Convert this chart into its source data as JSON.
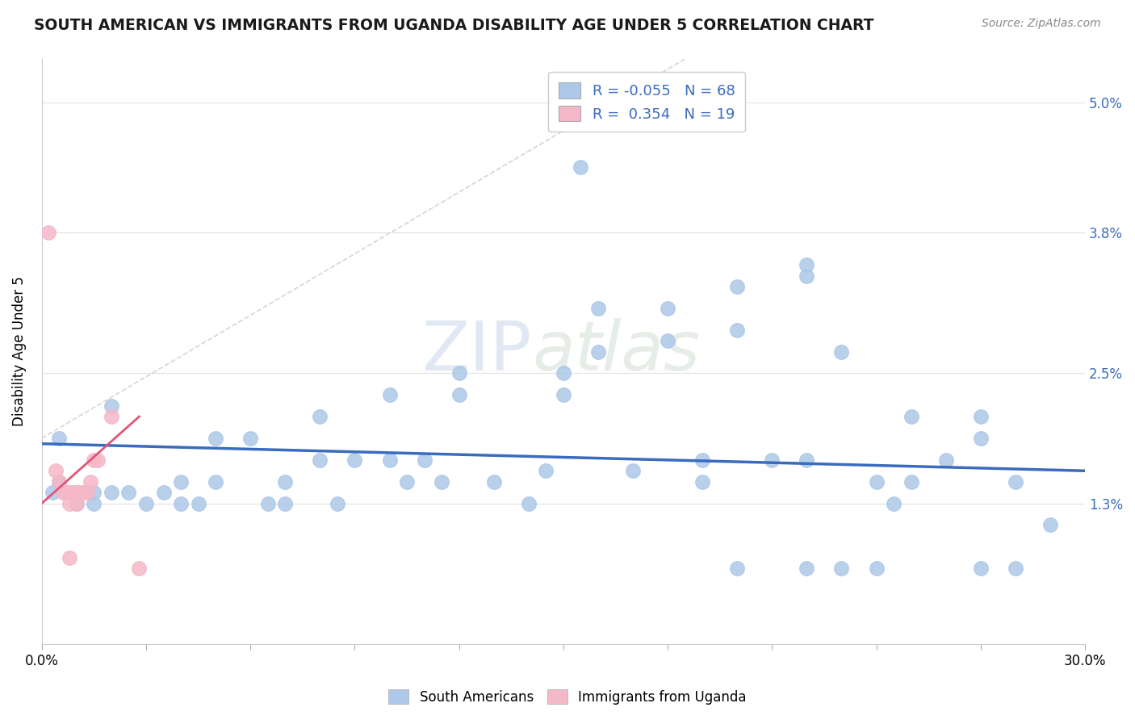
{
  "title": "SOUTH AMERICAN VS IMMIGRANTS FROM UGANDA DISABILITY AGE UNDER 5 CORRELATION CHART",
  "source": "Source: ZipAtlas.com",
  "ylabel": "Disability Age Under 5",
  "xlim": [
    0.0,
    0.3
  ],
  "ylim": [
    0.0,
    0.054
  ],
  "yticks": [
    0.0,
    0.013,
    0.025,
    0.038,
    0.05
  ],
  "ytick_labels": [
    "",
    "1.3%",
    "2.5%",
    "3.8%",
    "5.0%"
  ],
  "watermark": "ZIPatlas",
  "blue_R": -0.055,
  "blue_N": 68,
  "pink_R": 0.354,
  "pink_N": 19,
  "blue_color": "#adc8e8",
  "pink_color": "#f5b8c8",
  "blue_line_color": "#3a6bbd",
  "pink_line_color": "#e05575",
  "legend_text_color": "#3a6bbd",
  "blue_scatter": [
    [
      0.02,
      0.022
    ],
    [
      0.005,
      0.019
    ],
    [
      0.015,
      0.013
    ],
    [
      0.04,
      0.015
    ],
    [
      0.04,
      0.013
    ],
    [
      0.05,
      0.019
    ],
    [
      0.05,
      0.015
    ],
    [
      0.06,
      0.019
    ],
    [
      0.065,
      0.013
    ],
    [
      0.07,
      0.015
    ],
    [
      0.07,
      0.013
    ],
    [
      0.08,
      0.021
    ],
    [
      0.08,
      0.017
    ],
    [
      0.085,
      0.013
    ],
    [
      0.09,
      0.017
    ],
    [
      0.1,
      0.023
    ],
    [
      0.1,
      0.017
    ],
    [
      0.105,
      0.015
    ],
    [
      0.11,
      0.017
    ],
    [
      0.115,
      0.015
    ],
    [
      0.12,
      0.025
    ],
    [
      0.12,
      0.023
    ],
    [
      0.13,
      0.015
    ],
    [
      0.14,
      0.013
    ],
    [
      0.145,
      0.016
    ],
    [
      0.15,
      0.025
    ],
    [
      0.15,
      0.023
    ],
    [
      0.16,
      0.031
    ],
    [
      0.16,
      0.027
    ],
    [
      0.17,
      0.016
    ],
    [
      0.18,
      0.031
    ],
    [
      0.18,
      0.028
    ],
    [
      0.19,
      0.017
    ],
    [
      0.19,
      0.015
    ],
    [
      0.2,
      0.033
    ],
    [
      0.2,
      0.029
    ],
    [
      0.21,
      0.017
    ],
    [
      0.22,
      0.035
    ],
    [
      0.22,
      0.034
    ],
    [
      0.22,
      0.017
    ],
    [
      0.23,
      0.027
    ],
    [
      0.24,
      0.015
    ],
    [
      0.245,
      0.013
    ],
    [
      0.25,
      0.015
    ],
    [
      0.25,
      0.021
    ],
    [
      0.26,
      0.017
    ],
    [
      0.27,
      0.019
    ],
    [
      0.27,
      0.021
    ],
    [
      0.28,
      0.015
    ],
    [
      0.29,
      0.011
    ],
    [
      0.005,
      0.015
    ],
    [
      0.003,
      0.014
    ],
    [
      0.008,
      0.014
    ],
    [
      0.01,
      0.013
    ],
    [
      0.01,
      0.014
    ],
    [
      0.015,
      0.014
    ],
    [
      0.02,
      0.014
    ],
    [
      0.025,
      0.014
    ],
    [
      0.03,
      0.013
    ],
    [
      0.035,
      0.014
    ],
    [
      0.045,
      0.013
    ],
    [
      0.155,
      0.044
    ],
    [
      0.22,
      0.007
    ],
    [
      0.23,
      0.007
    ],
    [
      0.24,
      0.007
    ],
    [
      0.27,
      0.007
    ],
    [
      0.28,
      0.007
    ],
    [
      0.2,
      0.007
    ]
  ],
  "pink_scatter": [
    [
      0.002,
      0.038
    ],
    [
      0.004,
      0.016
    ],
    [
      0.005,
      0.015
    ],
    [
      0.006,
      0.014
    ],
    [
      0.007,
      0.014
    ],
    [
      0.008,
      0.014
    ],
    [
      0.008,
      0.013
    ],
    [
      0.009,
      0.014
    ],
    [
      0.01,
      0.014
    ],
    [
      0.01,
      0.013
    ],
    [
      0.011,
      0.014
    ],
    [
      0.012,
      0.014
    ],
    [
      0.013,
      0.014
    ],
    [
      0.014,
      0.015
    ],
    [
      0.015,
      0.017
    ],
    [
      0.016,
      0.017
    ],
    [
      0.02,
      0.021
    ],
    [
      0.008,
      0.008
    ],
    [
      0.028,
      0.007
    ]
  ],
  "blue_trend_x": [
    0.0,
    0.3
  ],
  "blue_trend_y": [
    0.0185,
    0.016
  ],
  "pink_trend_x": [
    0.0,
    0.028
  ],
  "pink_trend_y": [
    0.013,
    0.021
  ],
  "dash_line_x": [
    0.0,
    0.185
  ],
  "dash_line_y": [
    0.019,
    0.054
  ],
  "grid_color": "#e0e0e0",
  "background_color": "#ffffff"
}
